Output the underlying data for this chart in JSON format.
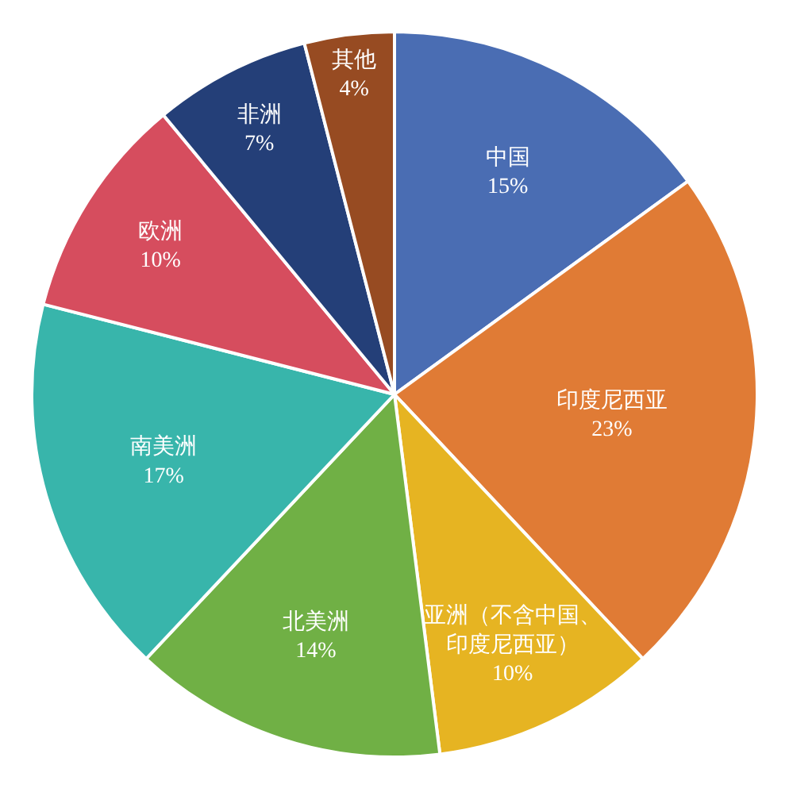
{
  "chart_data": {
    "type": "pie",
    "categories": [
      "中国",
      "印度尼西亚",
      "亚洲（不含中国、印度尼西亚）",
      "北美洲",
      "南美洲",
      "欧洲",
      "非洲",
      "其他"
    ],
    "values": [
      15,
      23,
      10,
      14,
      17,
      10,
      7,
      4
    ],
    "value_labels": [
      "15%",
      "23%",
      "10%",
      "14%",
      "17%",
      "10%",
      "7%",
      "4%"
    ],
    "colors": [
      "#4a6db3",
      "#e07b35",
      "#e6b422",
      "#70b045",
      "#38b5ab",
      "#d64d5e",
      "#243f78",
      "#974b22"
    ]
  }
}
